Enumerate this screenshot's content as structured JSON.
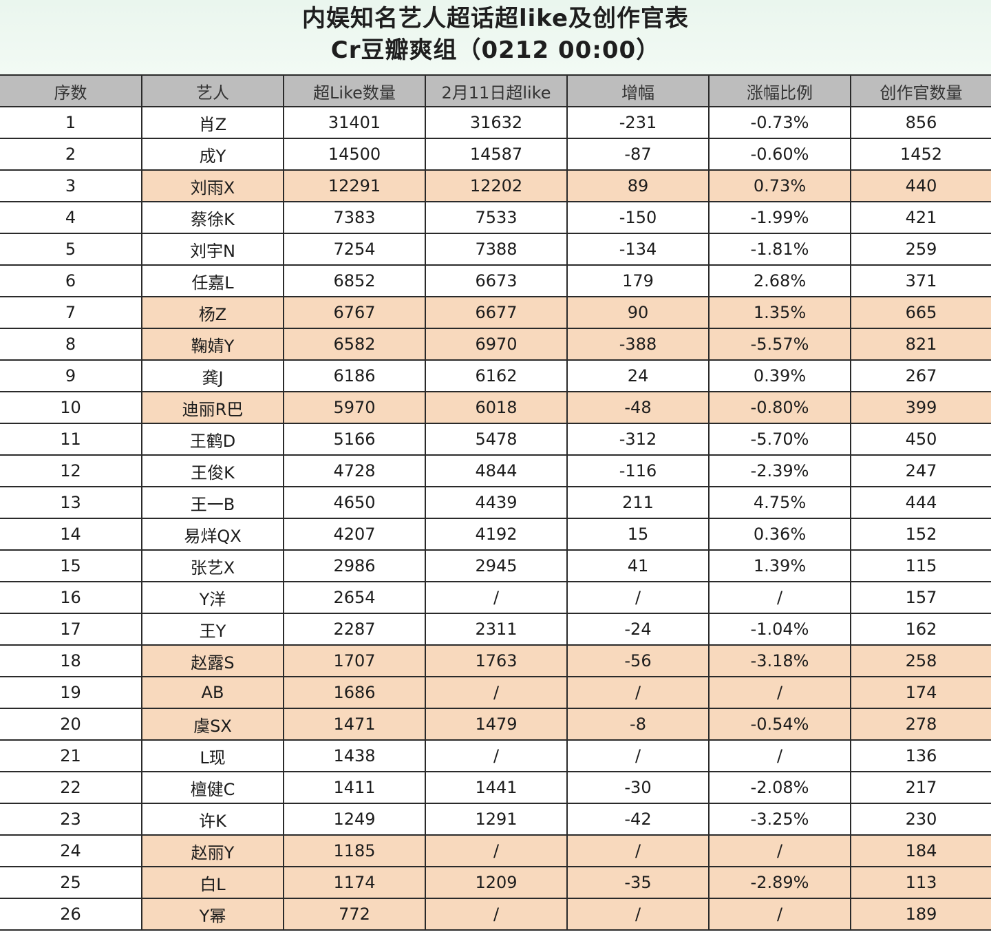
{
  "title": {
    "line1": "内娱知名艺人超话超like及创作官表",
    "line2": "Cr豆瓣爽组（0212 00:00）"
  },
  "columns": [
    "序数",
    "艺人",
    "超Like数量",
    "2月11日超like",
    "增幅",
    "涨幅比例",
    "创作官数量"
  ],
  "highlight_color": "#f8d9bd",
  "rows": [
    {
      "no": "1",
      "name": "肖Z",
      "likes": "31401",
      "prev": "31632",
      "diff": "-231",
      "pct": "-0.73%",
      "creators": "856",
      "hl": false
    },
    {
      "no": "2",
      "name": "成Y",
      "likes": "14500",
      "prev": "14587",
      "diff": "-87",
      "pct": "-0.60%",
      "creators": "1452",
      "hl": false
    },
    {
      "no": "3",
      "name": "刘雨X",
      "likes": "12291",
      "prev": "12202",
      "diff": "89",
      "pct": "0.73%",
      "creators": "440",
      "hl": true
    },
    {
      "no": "4",
      "name": "蔡徐K",
      "likes": "7383",
      "prev": "7533",
      "diff": "-150",
      "pct": "-1.99%",
      "creators": "421",
      "hl": false
    },
    {
      "no": "5",
      "name": "刘宇N",
      "likes": "7254",
      "prev": "7388",
      "diff": "-134",
      "pct": "-1.81%",
      "creators": "259",
      "hl": false
    },
    {
      "no": "6",
      "name": "任嘉L",
      "likes": "6852",
      "prev": "6673",
      "diff": "179",
      "pct": "2.68%",
      "creators": "371",
      "hl": false
    },
    {
      "no": "7",
      "name": "杨Z",
      "likes": "6767",
      "prev": "6677",
      "diff": "90",
      "pct": "1.35%",
      "creators": "665",
      "hl": true
    },
    {
      "no": "8",
      "name": "鞠婧Y",
      "likes": "6582",
      "prev": "6970",
      "diff": "-388",
      "pct": "-5.57%",
      "creators": "821",
      "hl": true
    },
    {
      "no": "9",
      "name": "龚J",
      "likes": "6186",
      "prev": "6162",
      "diff": "24",
      "pct": "0.39%",
      "creators": "267",
      "hl": false
    },
    {
      "no": "10",
      "name": "迪丽R巴",
      "likes": "5970",
      "prev": "6018",
      "diff": "-48",
      "pct": "-0.80%",
      "creators": "399",
      "hl": true
    },
    {
      "no": "11",
      "name": "王鹤D",
      "likes": "5166",
      "prev": "5478",
      "diff": "-312",
      "pct": "-5.70%",
      "creators": "450",
      "hl": false
    },
    {
      "no": "12",
      "name": "王俊K",
      "likes": "4728",
      "prev": "4844",
      "diff": "-116",
      "pct": "-2.39%",
      "creators": "247",
      "hl": false
    },
    {
      "no": "13",
      "name": "王一B",
      "likes": "4650",
      "prev": "4439",
      "diff": "211",
      "pct": "4.75%",
      "creators": "444",
      "hl": false
    },
    {
      "no": "14",
      "name": "易烊QX",
      "likes": "4207",
      "prev": "4192",
      "diff": "15",
      "pct": "0.36%",
      "creators": "152",
      "hl": false
    },
    {
      "no": "15",
      "name": "张艺X",
      "likes": "2986",
      "prev": "2945",
      "diff": "41",
      "pct": "1.39%",
      "creators": "115",
      "hl": false
    },
    {
      "no": "16",
      "name": "Y洋",
      "likes": "2654",
      "prev": "/",
      "diff": "/",
      "pct": "/",
      "creators": "157",
      "hl": false
    },
    {
      "no": "17",
      "name": "王Y",
      "likes": "2287",
      "prev": "2311",
      "diff": "-24",
      "pct": "-1.04%",
      "creators": "162",
      "hl": false
    },
    {
      "no": "18",
      "name": "赵露S",
      "likes": "1707",
      "prev": "1763",
      "diff": "-56",
      "pct": "-3.18%",
      "creators": "258",
      "hl": true
    },
    {
      "no": "19",
      "name": "AB",
      "likes": "1686",
      "prev": "/",
      "diff": "/",
      "pct": "/",
      "creators": "174",
      "hl": true
    },
    {
      "no": "20",
      "name": "虞SX",
      "likes": "1471",
      "prev": "1479",
      "diff": "-8",
      "pct": "-0.54%",
      "creators": "278",
      "hl": true
    },
    {
      "no": "21",
      "name": "L现",
      "likes": "1438",
      "prev": "/",
      "diff": "/",
      "pct": "/",
      "creators": "136",
      "hl": false
    },
    {
      "no": "22",
      "name": "檀健C",
      "likes": "1411",
      "prev": "1441",
      "diff": "-30",
      "pct": "-2.08%",
      "creators": "217",
      "hl": false
    },
    {
      "no": "23",
      "name": "许K",
      "likes": "1249",
      "prev": "1291",
      "diff": "-42",
      "pct": "-3.25%",
      "creators": "230",
      "hl": false
    },
    {
      "no": "24",
      "name": "赵丽Y",
      "likes": "1185",
      "prev": "/",
      "diff": "/",
      "pct": "/",
      "creators": "184",
      "hl": true
    },
    {
      "no": "25",
      "name": "白L",
      "likes": "1174",
      "prev": "1209",
      "diff": "-35",
      "pct": "-2.89%",
      "creators": "113",
      "hl": true
    },
    {
      "no": "26",
      "name": "Y幂",
      "likes": "772",
      "prev": "/",
      "diff": "/",
      "pct": "/",
      "creators": "189",
      "hl": true
    }
  ]
}
